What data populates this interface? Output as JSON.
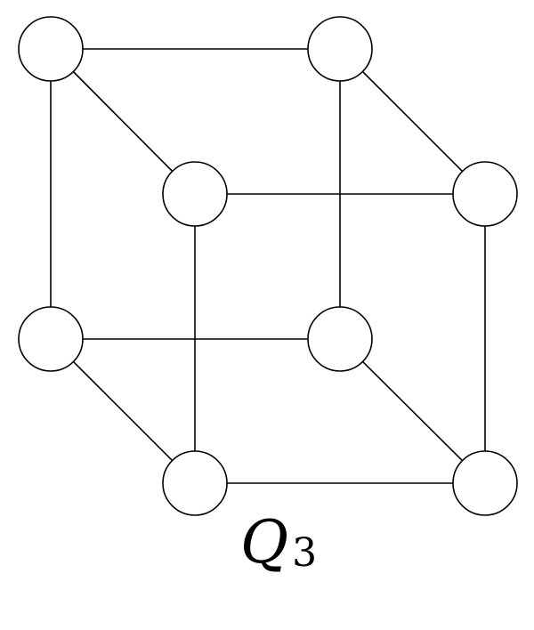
{
  "graph": {
    "label": {
      "main": "Q",
      "subscript": "3"
    },
    "nodes": [
      {
        "id": "back-top-left"
      },
      {
        "id": "back-top-right"
      },
      {
        "id": "front-top-left"
      },
      {
        "id": "front-top-right"
      },
      {
        "id": "back-bottom-left"
      },
      {
        "id": "back-bottom-right"
      },
      {
        "id": "front-bottom-left"
      },
      {
        "id": "front-bottom-right"
      }
    ],
    "edges": [
      [
        "back-top-left",
        "back-top-right"
      ],
      [
        "back-top-left",
        "back-bottom-left"
      ],
      [
        "back-top-left",
        "front-top-left"
      ],
      [
        "back-top-right",
        "back-bottom-right"
      ],
      [
        "back-top-right",
        "front-top-right"
      ],
      [
        "front-top-left",
        "front-top-right"
      ],
      [
        "front-top-left",
        "front-bottom-left"
      ],
      [
        "front-top-right",
        "front-bottom-right"
      ],
      [
        "back-bottom-left",
        "back-bottom-right"
      ],
      [
        "back-bottom-left",
        "front-bottom-left"
      ],
      [
        "back-bottom-right",
        "front-bottom-right"
      ],
      [
        "front-bottom-left",
        "front-bottom-right"
      ]
    ]
  }
}
